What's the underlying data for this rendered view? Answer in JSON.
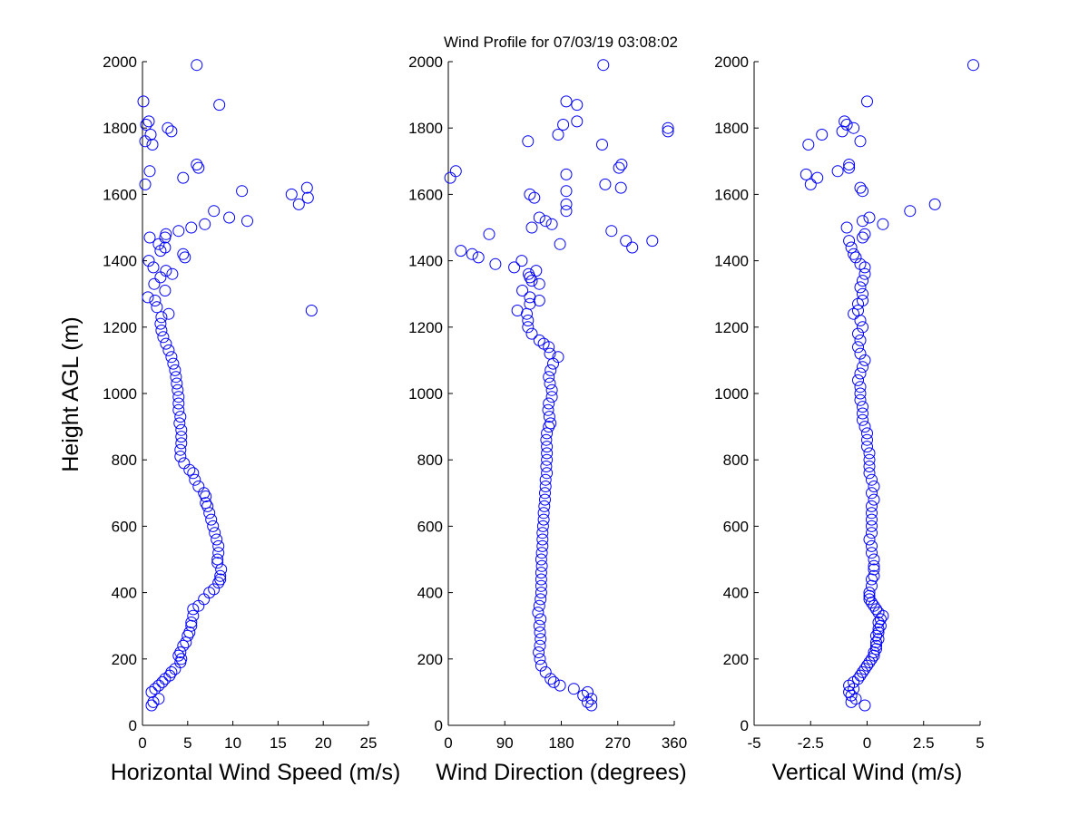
{
  "title": "Wind Profile for  07/03/19 03:08:02",
  "ylabel": "Height AGL (m)",
  "colors": {
    "marker": "#0000ff",
    "axis": "#000000",
    "background": "#ffffff"
  },
  "chart_data": [
    {
      "type": "scatter",
      "xlabel": "Horizontal Wind Speed (m/s)",
      "ylabel": "Height AGL (m)",
      "xlim": [
        0,
        25
      ],
      "ylim": [
        0,
        2000
      ],
      "xticks": [
        0,
        5,
        10,
        15,
        20,
        25
      ],
      "xtick_labels": [
        "0",
        "5",
        "10",
        "15",
        "20",
        "25"
      ],
      "yticks": [
        0,
        200,
        400,
        600,
        800,
        1000,
        1200,
        1400,
        1600,
        1800,
        2000
      ],
      "marker": "circle-open",
      "grid": false,
      "points": [
        [
          1.0,
          60
        ],
        [
          1.2,
          70
        ],
        [
          1.8,
          80
        ],
        [
          1.0,
          100
        ],
        [
          1.4,
          110
        ],
        [
          1.8,
          120
        ],
        [
          2.2,
          130
        ],
        [
          2.5,
          140
        ],
        [
          3.0,
          150
        ],
        [
          3.2,
          160
        ],
        [
          3.6,
          170
        ],
        [
          4.2,
          190
        ],
        [
          4.3,
          200
        ],
        [
          4.0,
          210
        ],
        [
          4.2,
          220
        ],
        [
          4.5,
          240
        ],
        [
          4.8,
          250
        ],
        [
          5.0,
          270
        ],
        [
          5.2,
          280
        ],
        [
          5.4,
          300
        ],
        [
          5.4,
          310
        ],
        [
          5.6,
          330
        ],
        [
          5.6,
          350
        ],
        [
          6.2,
          360
        ],
        [
          6.8,
          380
        ],
        [
          7.4,
          400
        ],
        [
          7.9,
          410
        ],
        [
          8.4,
          430
        ],
        [
          8.6,
          440
        ],
        [
          8.6,
          450
        ],
        [
          8.7,
          470
        ],
        [
          8.3,
          490
        ],
        [
          8.3,
          500
        ],
        [
          8.4,
          520
        ],
        [
          8.4,
          540
        ],
        [
          8.2,
          560
        ],
        [
          8.0,
          580
        ],
        [
          7.8,
          600
        ],
        [
          7.6,
          620
        ],
        [
          7.4,
          640
        ],
        [
          7.2,
          660
        ],
        [
          7.0,
          670
        ],
        [
          7.0,
          690
        ],
        [
          6.8,
          700
        ],
        [
          6.2,
          720
        ],
        [
          5.8,
          740
        ],
        [
          5.6,
          760
        ],
        [
          5.2,
          770
        ],
        [
          4.6,
          790
        ],
        [
          4.2,
          810
        ],
        [
          4.2,
          830
        ],
        [
          4.3,
          850
        ],
        [
          4.3,
          870
        ],
        [
          4.3,
          890
        ],
        [
          4.1,
          910
        ],
        [
          4.2,
          930
        ],
        [
          4.0,
          950
        ],
        [
          4.0,
          970
        ],
        [
          4.0,
          990
        ],
        [
          3.9,
          1010
        ],
        [
          3.8,
          1030
        ],
        [
          3.7,
          1050
        ],
        [
          3.6,
          1070
        ],
        [
          3.4,
          1090
        ],
        [
          3.2,
          1110
        ],
        [
          2.9,
          1130
        ],
        [
          2.6,
          1150
        ],
        [
          2.3,
          1170
        ],
        [
          2.1,
          1190
        ],
        [
          2.0,
          1210
        ],
        [
          2.1,
          1230
        ],
        [
          2.9,
          1240
        ],
        [
          1.6,
          1260
        ],
        [
          1.4,
          1280
        ],
        [
          0.6,
          1290
        ],
        [
          2.5,
          1310
        ],
        [
          1.3,
          1330
        ],
        [
          2.0,
          1350
        ],
        [
          3.3,
          1360
        ],
        [
          2.6,
          1370
        ],
        [
          1.2,
          1380
        ],
        [
          0.7,
          1400
        ],
        [
          4.7,
          1410
        ],
        [
          4.5,
          1420
        ],
        [
          2.0,
          1430
        ],
        [
          2.5,
          1440
        ],
        [
          1.8,
          1450
        ],
        [
          2.5,
          1470
        ],
        [
          0.8,
          1470
        ],
        [
          2.6,
          1480
        ],
        [
          4.0,
          1490
        ],
        [
          5.4,
          1500
        ],
        [
          6.9,
          1510
        ],
        [
          9.6,
          1530
        ],
        [
          7.9,
          1550
        ],
        [
          11.6,
          1520
        ],
        [
          17.3,
          1570
        ],
        [
          18.3,
          1590
        ],
        [
          16.5,
          1600
        ],
        [
          11.0,
          1610
        ],
        [
          18.2,
          1620
        ],
        [
          0.3,
          1630
        ],
        [
          4.5,
          1650
        ],
        [
          0.8,
          1670
        ],
        [
          6.2,
          1680
        ],
        [
          6.0,
          1690
        ],
        [
          1.1,
          1750
        ],
        [
          0.3,
          1760
        ],
        [
          0.9,
          1780
        ],
        [
          3.2,
          1790
        ],
        [
          2.8,
          1800
        ],
        [
          0.4,
          1810
        ],
        [
          0.7,
          1820
        ],
        [
          0.1,
          1880
        ],
        [
          8.5,
          1870
        ],
        [
          6.0,
          1990
        ],
        [
          18.7,
          1250
        ]
      ]
    },
    {
      "type": "scatter",
      "xlabel": "Wind Direction (degrees)",
      "ylabel": "",
      "xlim": [
        0,
        360
      ],
      "ylim": [
        0,
        2000
      ],
      "xticks": [
        0,
        90,
        180,
        270,
        360
      ],
      "xtick_labels": [
        "0",
        "90",
        "180",
        "270",
        "360"
      ],
      "yticks": [
        0,
        200,
        400,
        600,
        800,
        1000,
        1200,
        1400,
        1600,
        1800,
        2000
      ],
      "marker": "circle-open",
      "grid": false,
      "points": [
        [
          228,
          60
        ],
        [
          222,
          70
        ],
        [
          228,
          80
        ],
        [
          215,
          90
        ],
        [
          222,
          100
        ],
        [
          200,
          110
        ],
        [
          178,
          120
        ],
        [
          168,
          130
        ],
        [
          163,
          140
        ],
        [
          155,
          160
        ],
        [
          148,
          180
        ],
        [
          146,
          200
        ],
        [
          144,
          220
        ],
        [
          146,
          240
        ],
        [
          147,
          260
        ],
        [
          146,
          280
        ],
        [
          145,
          300
        ],
        [
          147,
          320
        ],
        [
          143,
          340
        ],
        [
          145,
          360
        ],
        [
          147,
          380
        ],
        [
          148,
          400
        ],
        [
          148,
          420
        ],
        [
          148,
          440
        ],
        [
          148,
          460
        ],
        [
          149,
          480
        ],
        [
          148,
          500
        ],
        [
          149,
          520
        ],
        [
          150,
          540
        ],
        [
          150,
          560
        ],
        [
          150,
          580
        ],
        [
          151,
          600
        ],
        [
          152,
          620
        ],
        [
          152,
          640
        ],
        [
          153,
          660
        ],
        [
          154,
          680
        ],
        [
          154,
          700
        ],
        [
          155,
          720
        ],
        [
          155,
          740
        ],
        [
          157,
          760
        ],
        [
          156,
          780
        ],
        [
          157,
          800
        ],
        [
          157,
          820
        ],
        [
          157,
          840
        ],
        [
          156,
          860
        ],
        [
          157,
          880
        ],
        [
          160,
          900
        ],
        [
          163,
          910
        ],
        [
          161,
          930
        ],
        [
          159,
          950
        ],
        [
          160,
          970
        ],
        [
          165,
          990
        ],
        [
          165,
          1010
        ],
        [
          162,
          1030
        ],
        [
          160,
          1050
        ],
        [
          163,
          1070
        ],
        [
          167,
          1090
        ],
        [
          175,
          1110
        ],
        [
          162,
          1120
        ],
        [
          160,
          1140
        ],
        [
          152,
          1150
        ],
        [
          145,
          1160
        ],
        [
          133,
          1180
        ],
        [
          127,
          1200
        ],
        [
          127,
          1220
        ],
        [
          125,
          1240
        ],
        [
          110,
          1250
        ],
        [
          130,
          1270
        ],
        [
          145,
          1280
        ],
        [
          130,
          1290
        ],
        [
          118,
          1310
        ],
        [
          145,
          1330
        ],
        [
          133,
          1340
        ],
        [
          130,
          1350
        ],
        [
          128,
          1360
        ],
        [
          140,
          1370
        ],
        [
          105,
          1380
        ],
        [
          117,
          1400
        ],
        [
          75,
          1390
        ],
        [
          48,
          1410
        ],
        [
          38,
          1420
        ],
        [
          20,
          1430
        ],
        [
          293,
          1440
        ],
        [
          178,
          1450
        ],
        [
          325,
          1460
        ],
        [
          283,
          1460
        ],
        [
          65,
          1480
        ],
        [
          260,
          1490
        ],
        [
          133,
          1500
        ],
        [
          165,
          1510
        ],
        [
          155,
          1520
        ],
        [
          145,
          1530
        ],
        [
          188,
          1550
        ],
        [
          188,
          1570
        ],
        [
          137,
          1590
        ],
        [
          130,
          1600
        ],
        [
          188,
          1610
        ],
        [
          275,
          1620
        ],
        [
          250,
          1630
        ],
        [
          3,
          1650
        ],
        [
          188,
          1660
        ],
        [
          12,
          1670
        ],
        [
          272,
          1680
        ],
        [
          276,
          1690
        ],
        [
          245,
          1750
        ],
        [
          127,
          1760
        ],
        [
          175,
          1780
        ],
        [
          350,
          1790
        ],
        [
          350,
          1800
        ],
        [
          183,
          1810
        ],
        [
          205,
          1820
        ],
        [
          205,
          1870
        ],
        [
          188,
          1880
        ],
        [
          247,
          1990
        ]
      ]
    },
    {
      "type": "scatter",
      "xlabel": "Vertical Wind (m/s)",
      "ylabel": "",
      "xlim": [
        -5,
        5
      ],
      "ylim": [
        0,
        2000
      ],
      "xticks": [
        -5,
        -2.5,
        0,
        2.5,
        5
      ],
      "xtick_labels": [
        "-5",
        "-2.5",
        "0",
        "2.5",
        "5"
      ],
      "yticks": [
        0,
        200,
        400,
        600,
        800,
        1000,
        1200,
        1400,
        1600,
        1800,
        2000
      ],
      "marker": "circle-open",
      "grid": false,
      "points": [
        [
          -0.1,
          60
        ],
        [
          -0.7,
          70
        ],
        [
          -0.5,
          80
        ],
        [
          -0.7,
          90
        ],
        [
          -0.8,
          100
        ],
        [
          -0.6,
          110
        ],
        [
          -0.8,
          120
        ],
        [
          -0.6,
          130
        ],
        [
          -0.4,
          140
        ],
        [
          -0.3,
          150
        ],
        [
          -0.2,
          160
        ],
        [
          -0.1,
          170
        ],
        [
          0.0,
          180
        ],
        [
          0.1,
          190
        ],
        [
          0.2,
          200
        ],
        [
          0.3,
          210
        ],
        [
          0.3,
          220
        ],
        [
          0.4,
          230
        ],
        [
          0.4,
          240
        ],
        [
          0.4,
          250
        ],
        [
          0.5,
          260
        ],
        [
          0.4,
          270
        ],
        [
          0.5,
          280
        ],
        [
          0.5,
          290
        ],
        [
          0.6,
          300
        ],
        [
          0.5,
          310
        ],
        [
          0.6,
          320
        ],
        [
          0.7,
          330
        ],
        [
          0.5,
          340
        ],
        [
          0.4,
          350
        ],
        [
          0.3,
          360
        ],
        [
          0.2,
          370
        ],
        [
          0.1,
          380
        ],
        [
          0.1,
          390
        ],
        [
          0.1,
          400
        ],
        [
          0.2,
          420
        ],
        [
          0.2,
          440
        ],
        [
          0.3,
          450
        ],
        [
          0.3,
          470
        ],
        [
          0.3,
          480
        ],
        [
          0.3,
          500
        ],
        [
          0.2,
          520
        ],
        [
          0.2,
          540
        ],
        [
          0.1,
          560
        ],
        [
          0.2,
          580
        ],
        [
          0.2,
          600
        ],
        [
          0.2,
          620
        ],
        [
          0.2,
          640
        ],
        [
          0.2,
          660
        ],
        [
          0.3,
          680
        ],
        [
          0.2,
          700
        ],
        [
          0.3,
          720
        ],
        [
          0.2,
          740
        ],
        [
          0.1,
          760
        ],
        [
          0.1,
          780
        ],
        [
          0.1,
          800
        ],
        [
          0.1,
          820
        ],
        [
          0.0,
          840
        ],
        [
          0.0,
          860
        ],
        [
          0.0,
          880
        ],
        [
          -0.1,
          900
        ],
        [
          -0.2,
          920
        ],
        [
          -0.2,
          940
        ],
        [
          -0.2,
          960
        ],
        [
          -0.3,
          980
        ],
        [
          -0.3,
          1000
        ],
        [
          -0.3,
          1020
        ],
        [
          -0.4,
          1040
        ],
        [
          -0.3,
          1060
        ],
        [
          -0.2,
          1080
        ],
        [
          -0.1,
          1100
        ],
        [
          -0.3,
          1120
        ],
        [
          -0.4,
          1140
        ],
        [
          -0.3,
          1160
        ],
        [
          -0.4,
          1180
        ],
        [
          -0.2,
          1200
        ],
        [
          -0.3,
          1220
        ],
        [
          -0.6,
          1240
        ],
        [
          -0.4,
          1250
        ],
        [
          -0.4,
          1270
        ],
        [
          -0.2,
          1280
        ],
        [
          -0.2,
          1300
        ],
        [
          -0.3,
          1320
        ],
        [
          -0.2,
          1340
        ],
        [
          -0.1,
          1360
        ],
        [
          -0.1,
          1380
        ],
        [
          -0.3,
          1390
        ],
        [
          -0.5,
          1410
        ],
        [
          -0.6,
          1420
        ],
        [
          -0.7,
          1440
        ],
        [
          -0.8,
          1460
        ],
        [
          -0.2,
          1470
        ],
        [
          -0.1,
          1480
        ],
        [
          -0.9,
          1500
        ],
        [
          -0.2,
          1520
        ],
        [
          0.1,
          1530
        ],
        [
          1.9,
          1550
        ],
        [
          0.7,
          1510
        ],
        [
          3.0,
          1570
        ],
        [
          -0.2,
          1610
        ],
        [
          -0.3,
          1620
        ],
        [
          -2.5,
          1630
        ],
        [
          -2.2,
          1650
        ],
        [
          -2.7,
          1660
        ],
        [
          -1.3,
          1670
        ],
        [
          -0.8,
          1680
        ],
        [
          -0.8,
          1690
        ],
        [
          -2.6,
          1750
        ],
        [
          -0.3,
          1760
        ],
        [
          -2.0,
          1780
        ],
        [
          -1.1,
          1790
        ],
        [
          -0.6,
          1800
        ],
        [
          -0.9,
          1810
        ],
        [
          -1.0,
          1820
        ],
        [
          0.0,
          1880
        ],
        [
          4.7,
          1990
        ]
      ]
    }
  ]
}
